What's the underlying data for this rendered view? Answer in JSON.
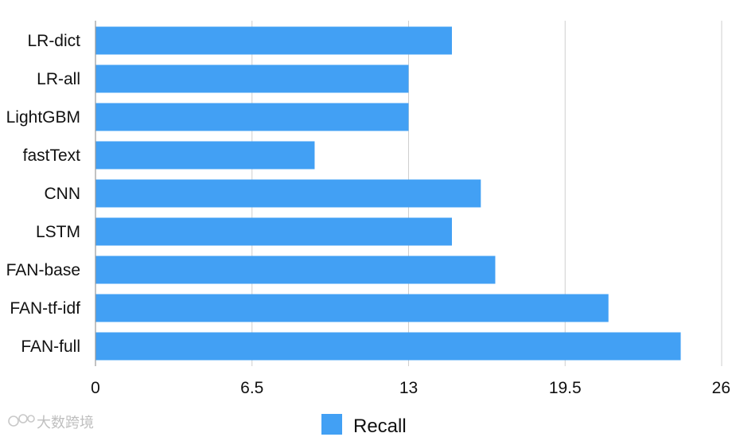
{
  "chart_data": {
    "type": "bar",
    "orientation": "horizontal",
    "categories": [
      "LR-dict",
      "LR-all",
      "LightGBM",
      "fastText",
      "CNN",
      "LSTM",
      "FAN-base",
      "FAN-tf-idf",
      "FAN-full"
    ],
    "series": [
      {
        "name": "Recall",
        "values": [
          14.8,
          13.0,
          13.0,
          9.1,
          16.0,
          14.8,
          16.6,
          21.3,
          24.3
        ],
        "color": "#42a0f4"
      }
    ],
    "xlim": [
      0,
      26
    ],
    "xticks": [
      "0",
      "6.5",
      "13",
      "19.5",
      "26"
    ],
    "grid": true,
    "legend_position": "bottom-center",
    "title": "",
    "xlabel": "",
    "ylabel": ""
  },
  "watermark": {
    "text": "大数跨境"
  }
}
